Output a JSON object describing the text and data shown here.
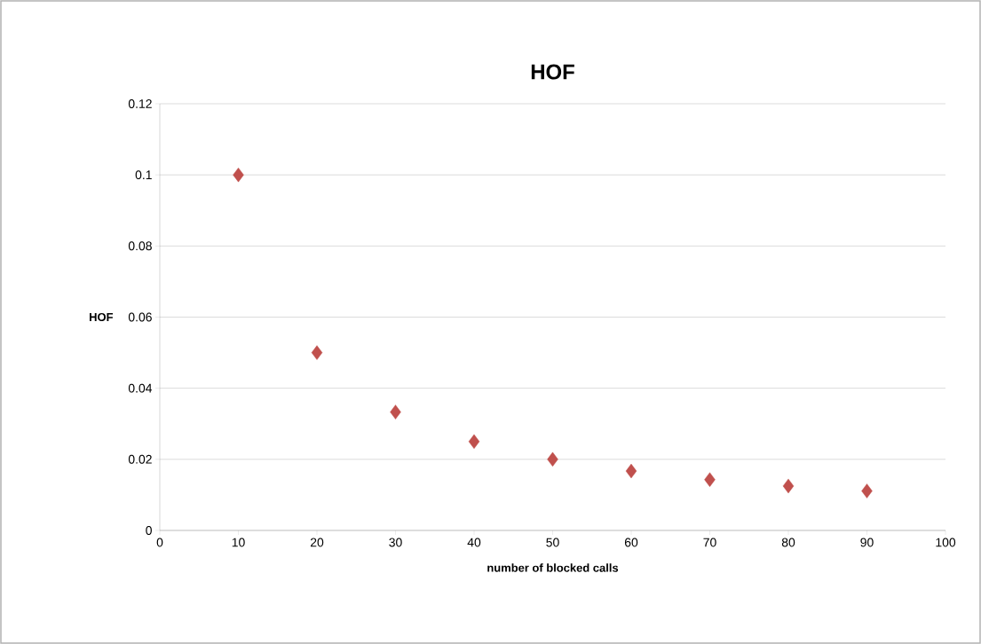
{
  "chart_data": {
    "type": "scatter",
    "title": "HOF",
    "xlabel": "number of blocked calls",
    "ylabel": "HOF",
    "x": [
      10,
      20,
      30,
      40,
      50,
      60,
      70,
      80,
      90
    ],
    "series": [
      {
        "color": "#c0504d",
        "values": [
          0.1,
          0.05,
          0.0333,
          0.025,
          0.02,
          0.0167,
          0.0143,
          0.0125,
          0.0111
        ]
      }
    ],
    "xlim": [
      0,
      100
    ],
    "ylim": [
      0,
      0.12
    ],
    "xticks": [
      0,
      10,
      20,
      30,
      40,
      50,
      60,
      70,
      80,
      90,
      100
    ],
    "yticks": [
      0,
      0.02,
      0.04,
      0.06,
      0.08,
      0.1,
      0.12
    ],
    "grid": "y",
    "marker": "diamond"
  }
}
